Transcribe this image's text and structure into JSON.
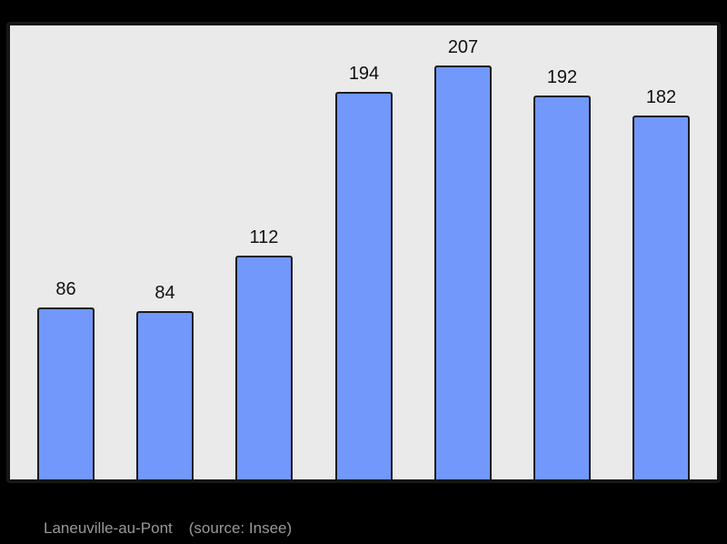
{
  "page": {
    "background": "#000000"
  },
  "chart_data": {
    "type": "bar",
    "title": "",
    "xlabel": "",
    "ylabel": "",
    "categories": [],
    "values": [
      86,
      84,
      112,
      194,
      207,
      192,
      182
    ],
    "value_labels": [
      "86",
      "84",
      "112",
      "194",
      "207",
      "192",
      "182"
    ],
    "ylim": [
      0,
      227
    ],
    "grid": false,
    "legend": false,
    "bar_color": "#7198fa",
    "bar_border_color": "#1c1c1c",
    "plot_background": "#eaeaea",
    "frame_border_color": "#151515",
    "value_label_color": "#111111"
  },
  "caption": {
    "place": "Laneuville-au-Pont",
    "source": "(source: Insee)",
    "color": "#999999"
  }
}
